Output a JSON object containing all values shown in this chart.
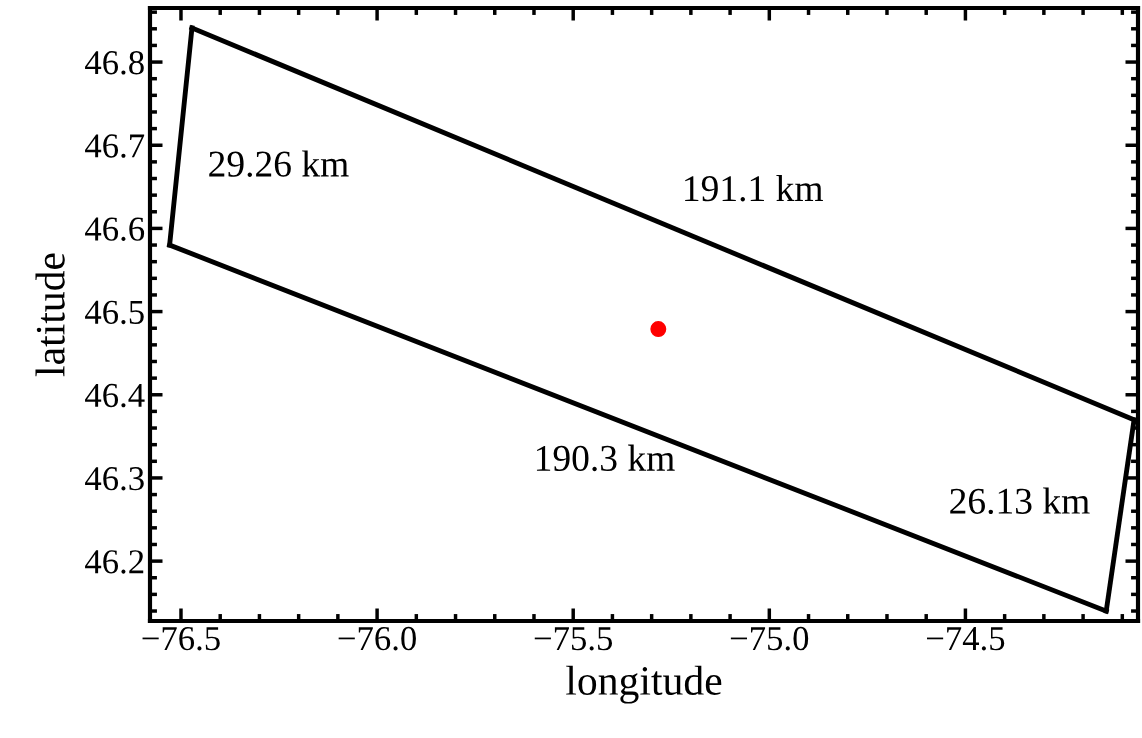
{
  "chart_data": {
    "type": "line",
    "xlabel": "longitude",
    "ylabel": "latitude",
    "xlim": [
      -76.579,
      -74.06
    ],
    "ylim": [
      46.128,
      46.865
    ],
    "xticks": [
      {
        "value": -76.5,
        "label": "−76.5"
      },
      {
        "value": -76.0,
        "label": "−76.0"
      },
      {
        "value": -75.5,
        "label": "−75.5"
      },
      {
        "value": -75.0,
        "label": "−75.0"
      },
      {
        "value": -74.5,
        "label": "−74.5"
      }
    ],
    "yticks": [
      46.2,
      46.3,
      46.4,
      46.5,
      46.6,
      46.7,
      46.8
    ],
    "grid": false,
    "legend": false,
    "series": [
      {
        "color": "#000000",
        "x": [
          -76.529,
          -76.472
        ],
        "values": [
          46.58,
          46.841
        ]
      },
      {
        "color": "#000000",
        "x": [
          -76.472,
          -74.07
        ],
        "values": [
          46.841,
          46.37
        ]
      },
      {
        "color": "#000000",
        "x": [
          -74.141,
          -74.07
        ],
        "values": [
          46.14,
          46.37
        ]
      },
      {
        "color": "#000000",
        "x": [
          -76.529,
          -74.141
        ],
        "values": [
          46.58,
          46.14
        ]
      },
      {
        "type": "scatter",
        "color": "#ff0000",
        "x": [
          -75.283
        ],
        "values": [
          46.479
        ]
      }
    ],
    "annotations": [
      "29.26 km",
      "191.1 km",
      "190.3 km",
      "26.13 km"
    ]
  }
}
